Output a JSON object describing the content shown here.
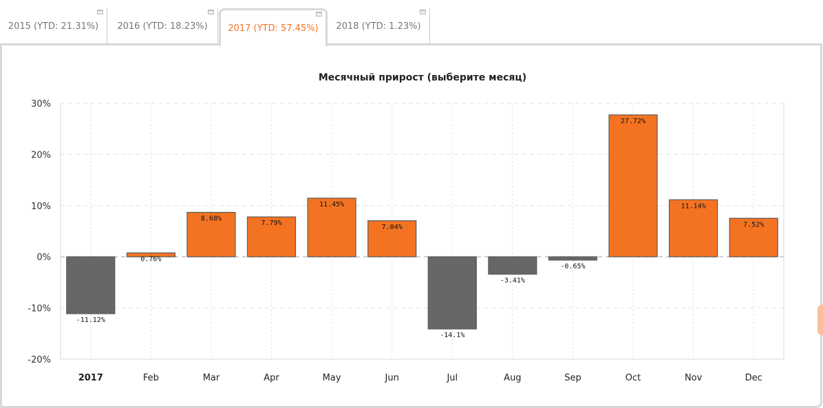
{
  "tabs": [
    {
      "label": "2015 (YTD: 21.31%)"
    },
    {
      "label": "2016 (YTD: 18.23%)"
    },
    {
      "label": "2017 (YTD: 57.45%)",
      "active": true
    },
    {
      "label": "2018 (YTD: 1.23%)"
    }
  ],
  "chart_data": {
    "type": "bar",
    "title": "Месячный прирост (выберите месяц)",
    "categories": [
      "2017",
      "Feb",
      "Mar",
      "Apr",
      "May",
      "Jun",
      "Jul",
      "Aug",
      "Sep",
      "Oct",
      "Nov",
      "Dec"
    ],
    "values": [
      -11.12,
      0.76,
      8.68,
      7.79,
      11.45,
      7.04,
      -14.1,
      -3.41,
      -0.65,
      27.72,
      11.14,
      7.52
    ],
    "labels": [
      "-11.12%",
      "0.76%",
      "8.68%",
      "7.79%",
      "11.45%",
      "7.04%",
      "-14.1%",
      "-3.41%",
      "-0.65%",
      "27.72%",
      "11.14%",
      "7.52%"
    ],
    "ylim": [
      -20,
      30
    ],
    "yticks": [
      {
        "v": 30,
        "label": "30%"
      },
      {
        "v": 20,
        "label": "20%"
      },
      {
        "v": 10,
        "label": "10%"
      },
      {
        "v": 0,
        "label": "0%"
      },
      {
        "v": -10,
        "label": "-10%"
      },
      {
        "v": -20,
        "label": "-20%"
      }
    ],
    "colors": {
      "positive": "#f47322",
      "negative": "#676767"
    },
    "grid": true
  }
}
